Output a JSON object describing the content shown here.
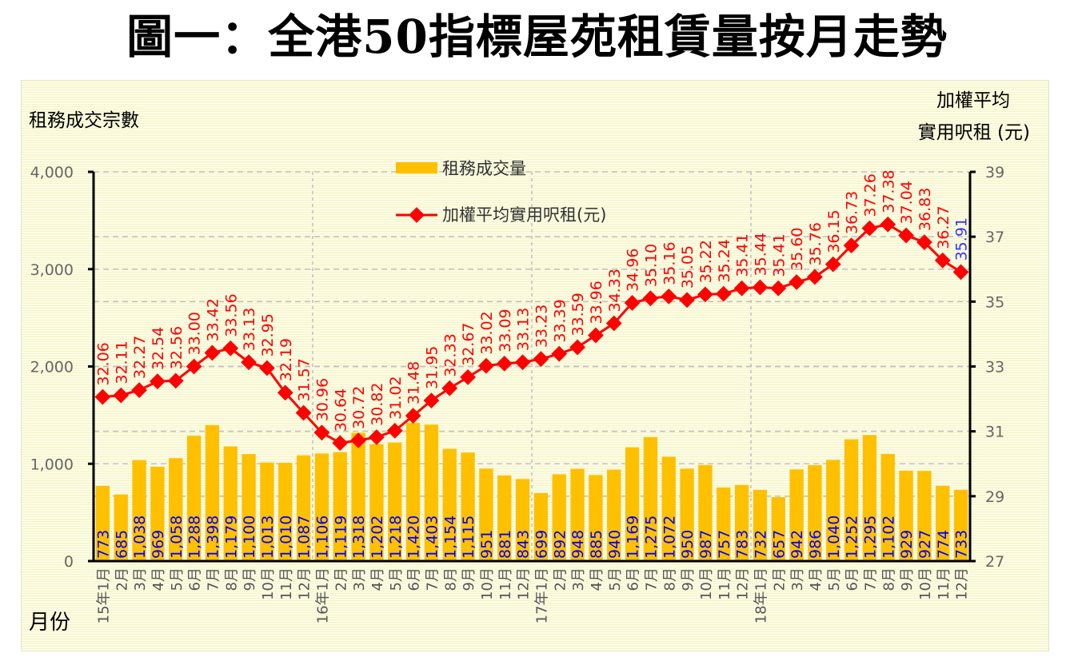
{
  "title": "圖一：全港50指標屋苑租賃量按月走勢",
  "colors": {
    "bar": "#FFC000",
    "line": "#FF0000",
    "bar_label": "#0000FF",
    "line_label": "#FF0000",
    "last_line_label": "#3333FF",
    "axis": "#000000",
    "tick_text": "#666666",
    "grid": "#BFBFBF"
  },
  "chart_data": {
    "type": "bar+line",
    "title": "圖一：全港50指標屋苑租賃量按月走勢",
    "xlabel": "月份",
    "ylabel_left": "租務成交宗數",
    "ylabel_right_line1": "加權平均",
    "ylabel_right_line2": "實用呎租 (元)",
    "ylim_left": [
      0,
      4000
    ],
    "yticks_left": [
      "4,000",
      "3,000",
      "2,000",
      "1,000",
      "0"
    ],
    "yticks_left_values": [
      4000,
      3000,
      2000,
      1000,
      0
    ],
    "ylim_right": [
      27,
      39
    ],
    "yticks_right": [
      "39",
      "37",
      "35",
      "33",
      "31",
      "29",
      "27"
    ],
    "yticks_right_values": [
      39,
      37,
      35,
      33,
      31,
      29,
      27
    ],
    "grid": "dashed",
    "legend": {
      "placement": "top-center",
      "items": [
        {
          "name": "租務成交量",
          "type": "bar"
        },
        {
          "name": "加權平均實用呎租(元)",
          "type": "line"
        }
      ]
    },
    "categories": [
      "15年1月",
      "2月",
      "3月",
      "4月",
      "5月",
      "6月",
      "7月",
      "8月",
      "9月",
      "10月",
      "11月",
      "12月",
      "16年1月",
      "2月",
      "3月",
      "4月",
      "5月",
      "6月",
      "7月",
      "8月",
      "9月",
      "10月",
      "11月",
      "12月",
      "17年1月",
      "2月",
      "3月",
      "4月",
      "5月",
      "6月",
      "7月",
      "8月",
      "9月",
      "10月",
      "11月",
      "12月",
      "18年1月",
      "2月",
      "3月",
      "4月",
      "5月",
      "6月",
      "7月",
      "8月",
      "9月",
      "10月",
      "11月",
      "12月"
    ],
    "series": [
      {
        "name": "租務成交量",
        "axis": "left",
        "type": "bar",
        "values": [
          773,
          685,
          1038,
          969,
          1058,
          1288,
          1398,
          1179,
          1100,
          1013,
          1010,
          1087,
          1106,
          1119,
          1318,
          1202,
          1218,
          1420,
          1403,
          1154,
          1115,
          951,
          881,
          843,
          699,
          892,
          948,
          885,
          940,
          1169,
          1275,
          1072,
          950,
          987,
          757,
          783,
          732,
          657,
          942,
          986,
          1040,
          1252,
          1295,
          1102,
          929,
          927,
          774,
          733
        ],
        "labels": [
          "773",
          "685",
          "1,038",
          "969",
          "1,058",
          "1,288",
          "1,398",
          "1,179",
          "1,100",
          "1,013",
          "1,010",
          "1,087",
          "1,106",
          "1,119",
          "1,318",
          "1,202",
          "1,218",
          "1,420",
          "1,403",
          "1,154",
          "1,115",
          "951",
          "881",
          "843",
          "699",
          "892",
          "948",
          "885",
          "940",
          "1,169",
          "1,275",
          "1,072",
          "950",
          "987",
          "757",
          "783",
          "732",
          "657",
          "942",
          "986",
          "1,040",
          "1,252",
          "1,295",
          "1,102",
          "929",
          "927",
          "774",
          "733"
        ]
      },
      {
        "name": "加權平均實用呎租(元)",
        "axis": "right",
        "type": "line",
        "values": [
          32.06,
          32.11,
          32.27,
          32.54,
          32.56,
          33.0,
          33.42,
          33.56,
          33.13,
          32.95,
          32.19,
          31.57,
          30.96,
          30.64,
          30.72,
          30.82,
          31.02,
          31.48,
          31.95,
          32.33,
          32.67,
          33.02,
          33.09,
          33.13,
          33.23,
          33.39,
          33.59,
          33.96,
          34.33,
          34.96,
          35.1,
          35.16,
          35.05,
          35.22,
          35.24,
          35.41,
          35.44,
          35.41,
          35.6,
          35.76,
          36.15,
          36.73,
          37.26,
          37.38,
          37.04,
          36.83,
          36.27,
          35.91
        ],
        "labels": [
          "32.06",
          "32.11",
          "32.27",
          "32.54",
          "32.56",
          "33.00",
          "33.42",
          "33.56",
          "33.13",
          "32.95",
          "32.19",
          "31.57",
          "30.96",
          "30.64",
          "30.72",
          "30.82",
          "31.02",
          "31.48",
          "31.95",
          "32.33",
          "32.67",
          "33.02",
          "33.09",
          "33.13",
          "33.23",
          "33.39",
          "33.59",
          "33.96",
          "34.33",
          "34.96",
          "35.10",
          "35.16",
          "35.05",
          "35.22",
          "35.24",
          "35.41",
          "35.44",
          "35.41",
          "35.60",
          "35.76",
          "36.15",
          "36.73",
          "37.26",
          "37.38",
          "37.04",
          "36.83",
          "36.27",
          "35.91"
        ]
      }
    ]
  }
}
